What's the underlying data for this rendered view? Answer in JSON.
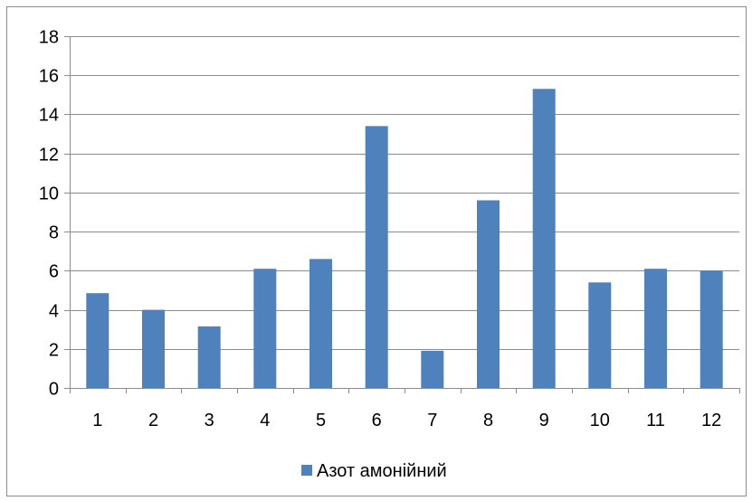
{
  "chart_data": {
    "type": "bar",
    "categories": [
      "1",
      "2",
      "3",
      "4",
      "5",
      "6",
      "7",
      "8",
      "9",
      "10",
      "11",
      "12"
    ],
    "series": [
      {
        "name": "Азот амонійний",
        "values": [
          4.85,
          4.0,
          3.15,
          6.1,
          6.6,
          13.4,
          1.9,
          9.6,
          15.3,
          5.4,
          6.1,
          6.0
        ],
        "color": "#4f81bd"
      }
    ],
    "y_ticks": [
      "0",
      "2",
      "4",
      "6",
      "8",
      "10",
      "12",
      "14",
      "16",
      "18"
    ],
    "ylim": [
      0,
      18
    ],
    "grid": true,
    "legend_position": "bottom",
    "title": "",
    "xlabel": "",
    "ylabel": ""
  }
}
